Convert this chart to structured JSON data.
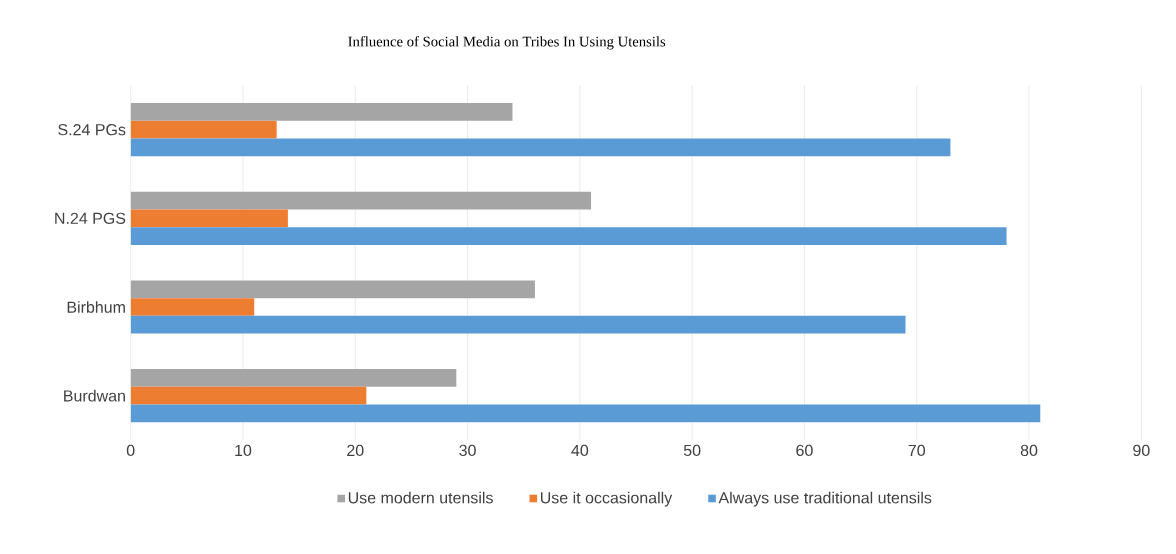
{
  "chart_data": {
    "type": "bar",
    "orientation": "horizontal",
    "title": "Influence of Social Media on Tribes In Using Utensils",
    "categories": [
      "S.24 PGs",
      "N.24 PGS",
      "Birbhum",
      "Burdwan"
    ],
    "series": [
      {
        "name": "Use modern utensils",
        "color": "#a5a5a5",
        "values": [
          34,
          41,
          36,
          29
        ]
      },
      {
        "name": "Use it occasionally",
        "color": "#ed7d31",
        "values": [
          13,
          14,
          11,
          21
        ]
      },
      {
        "name": "Always use traditional utensils",
        "color": "#5b9bd5",
        "values": [
          73,
          78,
          69,
          81
        ]
      }
    ],
    "xlim": [
      0,
      90
    ],
    "xticks": [
      0,
      10,
      20,
      30,
      40,
      50,
      60,
      70,
      80,
      90
    ],
    "grid": "x",
    "legend": "bottom"
  }
}
